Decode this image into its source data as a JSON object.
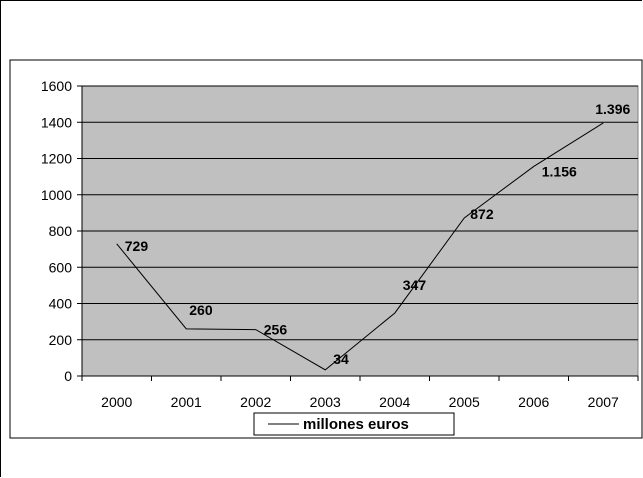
{
  "chart_data": {
    "type": "line",
    "x": [
      "2000",
      "2001",
      "2002",
      "2003",
      "2004",
      "2005",
      "2006",
      "2007"
    ],
    "series": [
      {
        "name": "millones euros",
        "values": [
          729,
          260,
          256,
          34,
          347,
          872,
          1156,
          1396
        ],
        "data_labels": [
          "729",
          "260",
          "256",
          "34",
          "347",
          "872",
          "1.156",
          "1.396"
        ]
      }
    ],
    "yticks": [
      "0",
      "200",
      "400",
      "600",
      "800",
      "1000",
      "1200",
      "1400",
      "1600"
    ],
    "ylim": [
      0,
      1600
    ],
    "grid": true,
    "legend_position": "bottom",
    "plot_background": "#c0c0c0",
    "line_color": "#000000"
  }
}
